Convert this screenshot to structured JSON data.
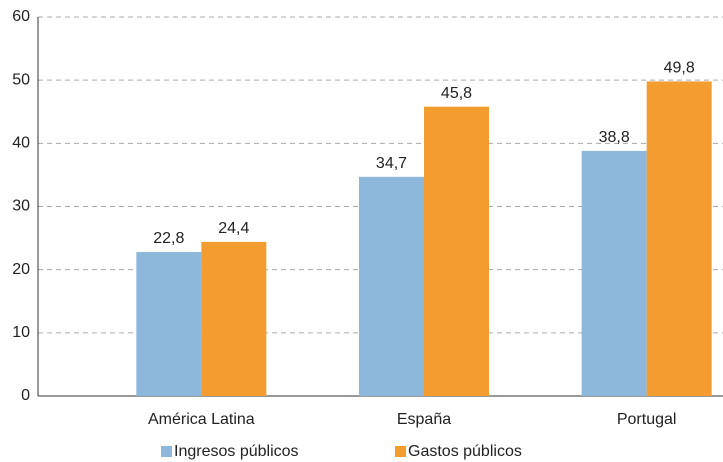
{
  "chart_data": {
    "type": "bar",
    "categories": [
      "América Latina",
      "España",
      "Portugal"
    ],
    "series": [
      {
        "name": "Ingresos públicos",
        "color": "#8db8dc",
        "values": [
          22.8,
          34.7,
          38.8
        ],
        "value_labels": [
          "22,8",
          "34,7",
          "38,8"
        ]
      },
      {
        "name": "Gastos públicos",
        "color": "#f39c2f",
        "values": [
          24.4,
          45.8,
          49.8
        ],
        "value_labels": [
          "24,4",
          "45,8",
          "49,8"
        ]
      }
    ],
    "ylim": [
      0,
      60
    ],
    "yticks": [
      0,
      10,
      20,
      30,
      40,
      50,
      60
    ],
    "grid": true,
    "legend": "bottom"
  }
}
